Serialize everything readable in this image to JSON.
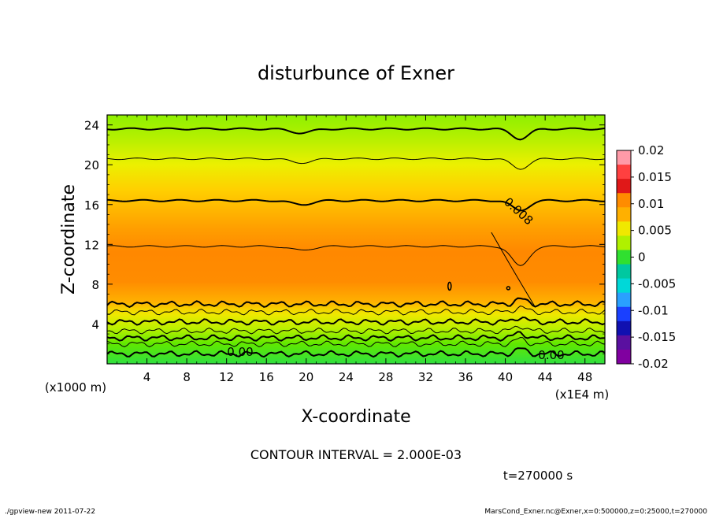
{
  "chart_data": {
    "type": "heatmap",
    "title": "disturbunce of Exner",
    "xlabel": "X-coordinate",
    "ylabel": "Z-coordinate",
    "x_unit": "(x1E4 m)",
    "y_unit": "(x1000 m)",
    "xlim": [
      0,
      50
    ],
    "ylim": [
      0,
      25
    ],
    "x_ticks": [
      4,
      8,
      12,
      16,
      20,
      24,
      28,
      32,
      36,
      40,
      44,
      48
    ],
    "y_ticks": [
      4,
      8,
      12,
      16,
      20,
      24
    ],
    "x_tick_labels": [
      "4",
      "8",
      "12",
      "16",
      "20",
      "24",
      "28",
      "32",
      "36",
      "40",
      "44",
      "48"
    ],
    "y_tick_labels": [
      "4",
      "8",
      "12",
      "16",
      "20",
      "24"
    ],
    "colorbar_levels": [
      0.02,
      0.015,
      0.01,
      0.005,
      0,
      -0.005,
      -0.01,
      -0.015,
      -0.02
    ],
    "colorbar_labels": [
      "0.02",
      "0.015",
      "0.01",
      "0.005",
      "0",
      "-0.005",
      "-0.01",
      "-0.015",
      "-0.02"
    ],
    "colorbar_colors": [
      "#ff9aa8",
      "#ff4040",
      "#e01818",
      "#ff8c00",
      "#ffb000",
      "#f0e800",
      "#b0f000",
      "#30e030",
      "#00c8a0",
      "#00d8d8",
      "#2aa0ff",
      "#1a40ff",
      "#1010b0",
      "#5a10a0",
      "#8000a0"
    ],
    "contour_labels": [
      "0.00",
      "0.00",
      "0.008"
    ],
    "contour_interval": "CONTOUR INTERVAL = 2.000E-03",
    "time_label": "t=270000 s",
    "profile_approx": [
      {
        "z": 0.5,
        "value": -0.002
      },
      {
        "z": 2,
        "value": 0.0
      },
      {
        "z": 4,
        "value": 0.004
      },
      {
        "z": 6,
        "value": 0.008
      },
      {
        "z": 8,
        "value": 0.011
      },
      {
        "z": 10,
        "value": 0.0095
      },
      {
        "z": 12,
        "value": 0.008
      },
      {
        "z": 14,
        "value": 0.0065
      },
      {
        "z": 16.5,
        "value": 0.006
      },
      {
        "z": 20,
        "value": 0.004
      },
      {
        "z": 24,
        "value": 0.002
      }
    ]
  },
  "footer": {
    "left": "./gpview-new  2011-07-22",
    "right": "MarsCond_Exner.nc@Exner,x=0:500000,z=0:25000,t=270000"
  }
}
